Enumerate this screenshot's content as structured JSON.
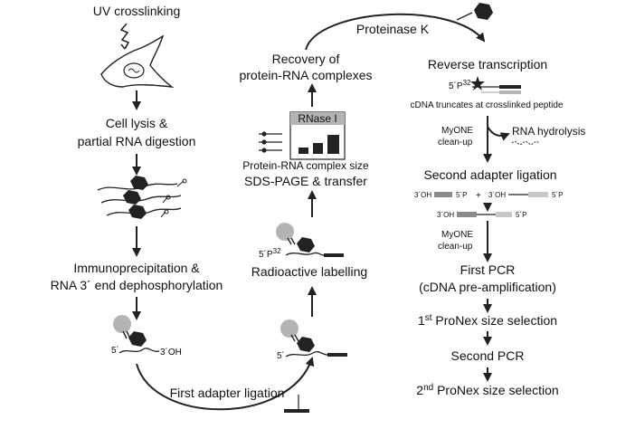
{
  "colors": {
    "ink": "#222222",
    "protein_dark": "#222222",
    "antibody_grey": "#b4b4b4",
    "gel_header": "#b4b4b4",
    "adapter_grey": "#8a8a8a",
    "adapter_light": "#c8c8c8"
  },
  "steps": {
    "uv": "UV crosslinking",
    "lysis_1": "Cell lysis &",
    "lysis_2": "partial RNA digestion",
    "ip_1": "Immunoprecipitation &",
    "ip_2": "RNA 3´ end dephosphorylation",
    "first_adapter": "First adapter ligation",
    "radioactive": "Radioactive labelling",
    "gel_size": "Protein-RNA complex size",
    "sds": "SDS-PAGE & transfer",
    "rnase": "RNase I",
    "recovery_1": "Recovery of",
    "recovery_2": "protein-RNA complexes",
    "proteinase": "Proteinase K",
    "rt": "Reverse transcription",
    "cdna_truncates": "cDNA truncates at crosslinked peptide",
    "myone_a_1": "MyONE",
    "myone_a_2": "clean-up",
    "rna_hydrolysis": "RNA hydrolysis",
    "second_adapter": "Second adapter ligation",
    "myone_b_1": "MyONE",
    "myone_b_2": "clean-up",
    "first_pcr_1": "First PCR",
    "first_pcr_2": "(cDNA pre-amplification)",
    "pronex1_sup": "st",
    "pronex1_text": " ProNex size selection",
    "second_pcr": "Second PCR",
    "pronex2_sup": "nd",
    "pronex2_text": " ProNex size selection",
    "one": "1",
    "two": "2"
  },
  "labels": {
    "five_prime": "5´",
    "three_oh": "3´OH",
    "five_p32": "5´P",
    "p32_sup": "32",
    "plus": "+",
    "three_oh_b": "3´OH",
    "five_p": "5´P"
  },
  "icons": {
    "cell": "cell-icon",
    "lightning": "uv-lightning-icon",
    "scissors": "scissors-icon",
    "protein": "hexagon-protein-icon",
    "antibody": "antibody-icon",
    "star": "crosslink-star-icon",
    "gel": "gel-icon"
  }
}
